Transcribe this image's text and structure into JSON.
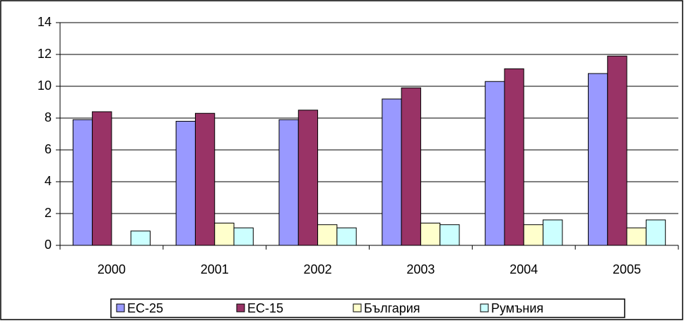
{
  "chart_data": {
    "type": "bar",
    "categories": [
      "2000",
      "2001",
      "2002",
      "2003",
      "2004",
      "2005"
    ],
    "series": [
      {
        "name": "ЕС-25",
        "color": "#9999ff",
        "values": [
          7.9,
          7.8,
          7.9,
          9.2,
          10.3,
          10.8
        ]
      },
      {
        "name": "ЕС-15",
        "color": "#993366",
        "values": [
          8.4,
          8.3,
          8.5,
          9.9,
          11.1,
          11.9
        ]
      },
      {
        "name": "България",
        "color": "#ffffcc",
        "values": [
          null,
          1.4,
          1.3,
          1.4,
          1.3,
          1.1
        ]
      },
      {
        "name": "Румъния",
        "color": "#ccffff",
        "values": [
          0.9,
          1.1,
          1.1,
          1.3,
          1.6,
          1.6
        ]
      }
    ],
    "ylim": [
      0,
      14
    ],
    "yticks": [
      0,
      2,
      4,
      6,
      8,
      10,
      12,
      14
    ],
    "grid": true,
    "legend": "bottom"
  }
}
